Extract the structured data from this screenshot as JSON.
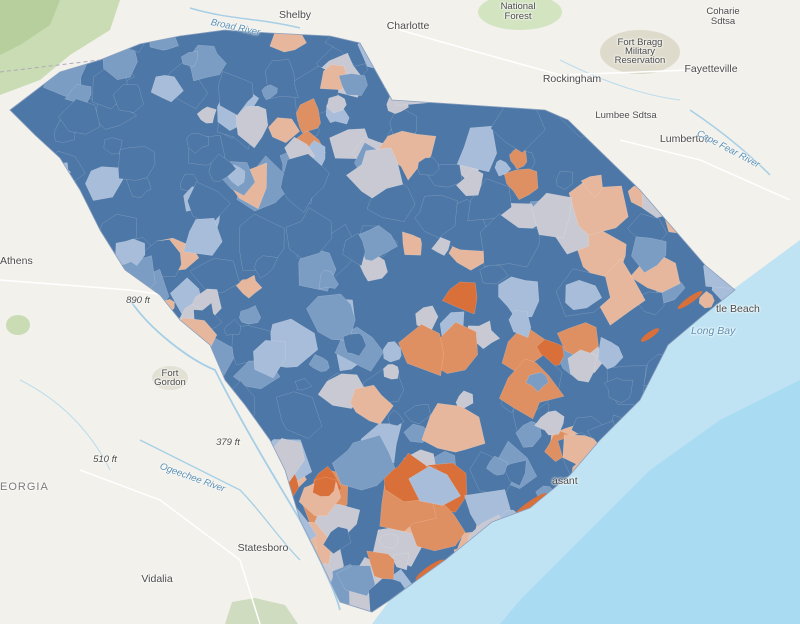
{
  "map": {
    "colors": {
      "land": "#f2f1ec",
      "forest": "#c9dcb4",
      "water": "#bfe3f3",
      "water_deep": "#a9dbf2",
      "dark_blue": "#4d77a6",
      "mid_blue": "#7b9dc4",
      "light_blue": "#a8bdd9",
      "gray": "#c9c9d3",
      "light_orange": "#e6b79c",
      "orange": "#df9062",
      "dark_orange": "#d9703a"
    },
    "labels": {
      "shelby": "Shelby",
      "charlotte": "Charlotte",
      "nf_line1": "National",
      "nf_line2": "Forest",
      "cohare_line1": "Coharie",
      "cohare_line2": "Sdtsa",
      "fort_bragg_line1": "Fort Bragg",
      "fort_bragg_line2": "Military",
      "fort_bragg_line3": "Reservation",
      "fayetteville": "Fayetteville",
      "rockingham": "Rockingham",
      "lumbee": "Lumbee Sdtsa",
      "lumberton": "Lumberton",
      "cape_fear_river": "Cape Fear River",
      "broad_river": "Broad River",
      "athens": "Athens",
      "elev_890": "890 ft",
      "fort_gordon_line1": "Fort",
      "fort_gordon_line2": "Gordon",
      "elev_379": "379 ft",
      "elev_510": "510 ft",
      "ogeechee_river": "Ogeechee River",
      "georgia": "EORGIA",
      "statesboro": "Statesboro",
      "vidalia": "Vidalia",
      "myrtle_beach": "tle Beach",
      "long_bay": "Long Bay",
      "mount_pleasant": "asant"
    }
  }
}
